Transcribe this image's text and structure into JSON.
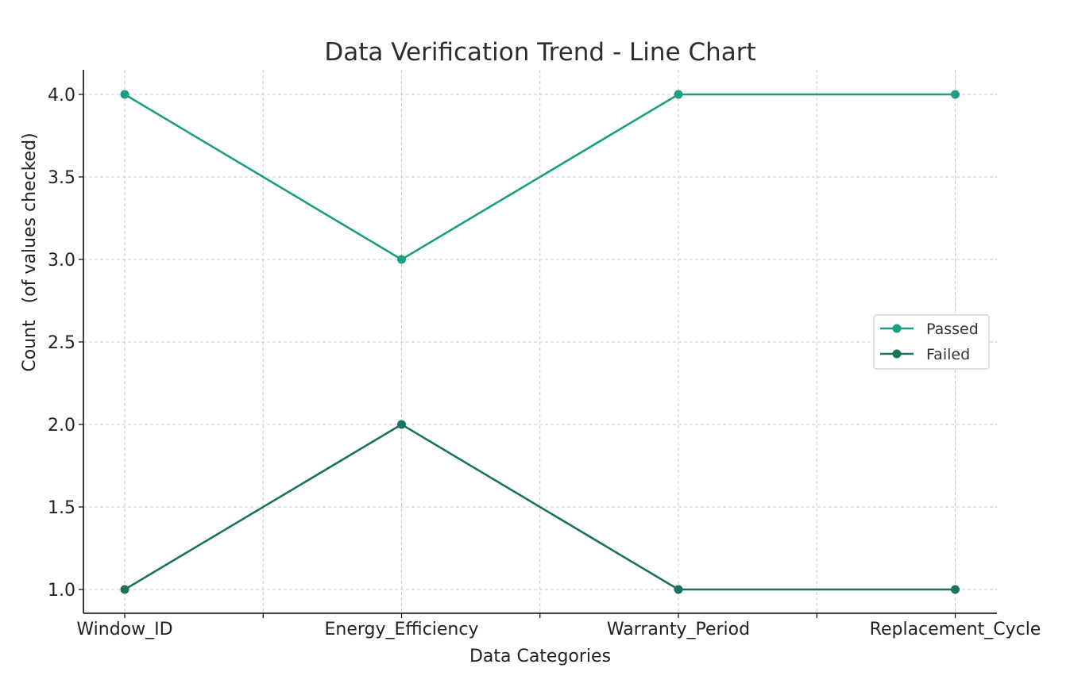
{
  "chart_data": {
    "type": "line",
    "title": "Data Verification Trend - Line Chart",
    "xlabel": "Data Categories",
    "ylabel": "Count   (of values checked)",
    "categories": [
      "Window_ID",
      "Energy_Efficiency",
      "Warranty_Period",
      "Replacement_Cycle"
    ],
    "ylim": [
      0.85,
      4.15
    ],
    "yticks": [
      1.0,
      1.5,
      2.0,
      2.5,
      3.0,
      3.5,
      4.0
    ],
    "ytick_labels": [
      "1.0",
      "1.5",
      "2.0",
      "2.5",
      "3.0",
      "3.5",
      "4.0"
    ],
    "grid": true,
    "legend_position": "center-right",
    "series": [
      {
        "name": "Passed",
        "values": [
          4,
          3,
          4,
          4
        ],
        "color": "#1b9e81"
      },
      {
        "name": "Failed",
        "values": [
          1,
          2,
          1,
          1
        ],
        "color": "#19735f"
      }
    ]
  }
}
